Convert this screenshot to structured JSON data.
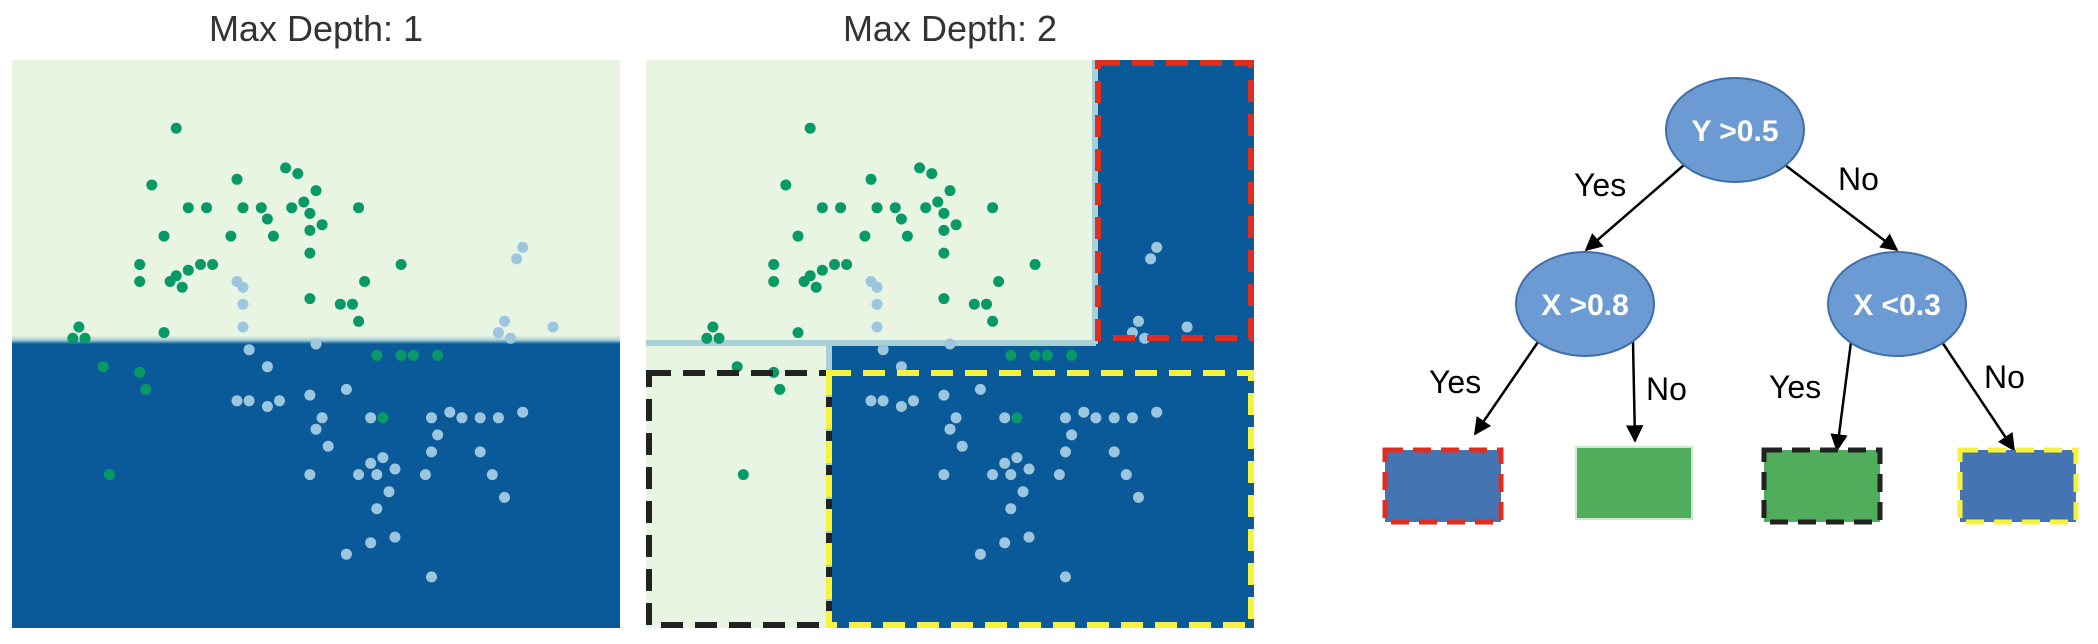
{
  "panels": [
    {
      "title": "Max Depth: 1"
    },
    {
      "title": "Max Depth: 2"
    }
  ],
  "colors": {
    "region_light": "#e8f5e3",
    "region_dark": "#0a5a9a",
    "point_green": "#079966",
    "point_lightblue": "#9cc6de",
    "node_fill": "#6b9bd2",
    "leaf_blue": "#4574b2",
    "leaf_green": "#4fad5b",
    "dash_red": "#e02d1f",
    "dash_black": "#222222",
    "dash_yellow": "#f7f23c"
  },
  "tree": {
    "root": {
      "label": "Y >0.5"
    },
    "left": {
      "label": "X >0.8"
    },
    "right": {
      "label": "X <0.3"
    },
    "edges": {
      "root_left": "Yes",
      "root_right": "No",
      "left_yes": "Yes",
      "left_no": "No",
      "right_yes": "Yes",
      "right_no": "No"
    },
    "leaves": [
      {
        "fill": "blue",
        "border": "red"
      },
      {
        "fill": "green",
        "border": "none"
      },
      {
        "fill": "green",
        "border": "black"
      },
      {
        "fill": "blue",
        "border": "yellow"
      }
    ]
  },
  "points": {
    "green": [
      [
        0.27,
        0.88
      ],
      [
        0.23,
        0.78
      ],
      [
        0.37,
        0.79
      ],
      [
        0.45,
        0.81
      ],
      [
        0.47,
        0.8
      ],
      [
        0.5,
        0.77
      ],
      [
        0.48,
        0.75
      ],
      [
        0.49,
        0.73
      ],
      [
        0.46,
        0.74
      ],
      [
        0.57,
        0.74
      ],
      [
        0.29,
        0.74
      ],
      [
        0.32,
        0.74
      ],
      [
        0.38,
        0.74
      ],
      [
        0.41,
        0.74
      ],
      [
        0.42,
        0.72
      ],
      [
        0.36,
        0.69
      ],
      [
        0.43,
        0.69
      ],
      [
        0.25,
        0.69
      ],
      [
        0.49,
        0.7
      ],
      [
        0.51,
        0.71
      ],
      [
        0.49,
        0.66
      ],
      [
        0.29,
        0.63
      ],
      [
        0.31,
        0.64
      ],
      [
        0.21,
        0.64
      ],
      [
        0.27,
        0.62
      ],
      [
        0.28,
        0.6
      ],
      [
        0.33,
        0.64
      ],
      [
        0.58,
        0.61
      ],
      [
        0.64,
        0.64
      ],
      [
        0.21,
        0.61
      ],
      [
        0.26,
        0.61
      ],
      [
        0.49,
        0.58
      ],
      [
        0.54,
        0.57
      ],
      [
        0.56,
        0.57
      ],
      [
        0.57,
        0.54
      ],
      [
        0.11,
        0.53
      ],
      [
        0.12,
        0.51
      ],
      [
        0.1,
        0.51
      ],
      [
        0.25,
        0.52
      ],
      [
        0.15,
        0.46
      ],
      [
        0.21,
        0.45
      ],
      [
        0.6,
        0.48
      ],
      [
        0.64,
        0.48
      ],
      [
        0.66,
        0.48
      ],
      [
        0.7,
        0.48
      ],
      [
        0.22,
        0.42
      ],
      [
        0.61,
        0.37
      ],
      [
        0.16,
        0.27
      ]
    ],
    "lightblue": [
      [
        0.37,
        0.61
      ],
      [
        0.38,
        0.6
      ],
      [
        0.38,
        0.57
      ],
      [
        0.38,
        0.53
      ],
      [
        0.39,
        0.49
      ],
      [
        0.42,
        0.46
      ],
      [
        0.5,
        0.5
      ],
      [
        0.84,
        0.67
      ],
      [
        0.83,
        0.65
      ],
      [
        0.81,
        0.54
      ],
      [
        0.8,
        0.52
      ],
      [
        0.82,
        0.51
      ],
      [
        0.89,
        0.53
      ],
      [
        0.37,
        0.4
      ],
      [
        0.39,
        0.4
      ],
      [
        0.42,
        0.39
      ],
      [
        0.44,
        0.4
      ],
      [
        0.49,
        0.41
      ],
      [
        0.55,
        0.42
      ],
      [
        0.59,
        0.37
      ],
      [
        0.51,
        0.37
      ],
      [
        0.5,
        0.35
      ],
      [
        0.52,
        0.32
      ],
      [
        0.49,
        0.27
      ],
      [
        0.57,
        0.27
      ],
      [
        0.59,
        0.29
      ],
      [
        0.61,
        0.3
      ],
      [
        0.6,
        0.27
      ],
      [
        0.63,
        0.28
      ],
      [
        0.62,
        0.24
      ],
      [
        0.6,
        0.21
      ],
      [
        0.69,
        0.37
      ],
      [
        0.7,
        0.34
      ],
      [
        0.69,
        0.31
      ],
      [
        0.72,
        0.38
      ],
      [
        0.74,
        0.37
      ],
      [
        0.77,
        0.37
      ],
      [
        0.8,
        0.37
      ],
      [
        0.84,
        0.38
      ],
      [
        0.68,
        0.27
      ],
      [
        0.77,
        0.31
      ],
      [
        0.79,
        0.27
      ],
      [
        0.81,
        0.23
      ],
      [
        0.59,
        0.15
      ],
      [
        0.63,
        0.16
      ],
      [
        0.55,
        0.13
      ],
      [
        0.69,
        0.09
      ]
    ]
  }
}
